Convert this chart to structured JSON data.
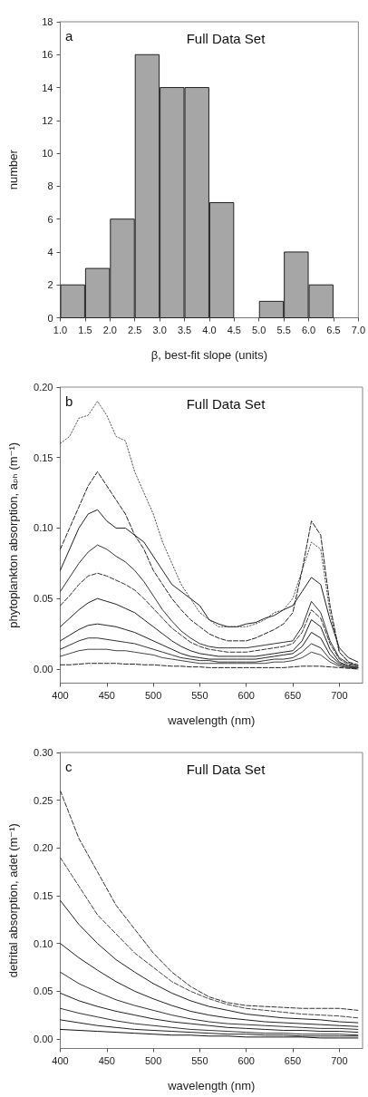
{
  "chart_data": [
    {
      "type": "histogram",
      "title": "Full Data Set",
      "annotations": [
        "a"
      ],
      "xlabel": "β, best-fit slope (units)",
      "ylabel": "number",
      "bins": [
        1.0,
        1.5,
        2.0,
        2.5,
        3.0,
        3.5,
        4.0,
        4.5,
        5.0,
        5.5,
        6.0,
        6.5
      ],
      "values": [
        2,
        3,
        6,
        16,
        14,
        14,
        7,
        0,
        1,
        4,
        2
      ],
      "color": "#a6a6a6",
      "xlim": [
        1.0,
        7.0
      ],
      "xticks": [
        {
          "value": 1,
          "label": "1.0"
        },
        1.5,
        {
          "value": 2,
          "label": "2.0"
        },
        2.5,
        {
          "value": 3,
          "label": "3.0"
        },
        3.5,
        {
          "value": 4,
          "label": "4.0"
        },
        4.5,
        {
          "value": 5,
          "label": "5.0"
        },
        5.5,
        {
          "value": 6,
          "label": "6.0"
        },
        6.5,
        {
          "value": 7,
          "label": "7.0"
        }
      ],
      "ylim": [
        0,
        18
      ],
      "yticks": [
        0,
        2,
        4,
        6,
        8,
        10,
        12,
        14,
        16,
        18
      ]
    },
    {
      "type": "line",
      "title": "Full Data Set",
      "annotations": [
        "b"
      ],
      "xlabel": "wavelength (nm)",
      "ylabel": "phytoplankton absorption, aₚₕ (m⁻¹)",
      "marker": "none",
      "x": [
        400,
        410,
        420,
        430,
        440,
        450,
        460,
        470,
        480,
        490,
        500,
        510,
        520,
        530,
        540,
        550,
        560,
        570,
        580,
        590,
        600,
        610,
        620,
        630,
        640,
        650,
        660,
        670,
        680,
        690,
        700,
        710,
        720
      ],
      "series": [
        {
          "color": "#555555",
          "line_style": "dotted",
          "values": [
            0.16,
            0.165,
            0.178,
            0.18,
            0.19,
            0.18,
            0.165,
            0.162,
            0.14,
            0.125,
            0.11,
            0.09,
            0.075,
            0.06,
            0.05,
            0.04,
            0.035,
            0.03,
            0.03,
            0.03,
            0.03,
            0.032,
            0.035,
            0.04,
            0.042,
            0.05,
            0.07,
            0.09,
            0.085,
            0.04,
            0.012,
            0.005,
            0.002
          ]
        },
        {
          "color": "#222222",
          "line_style": "dashed",
          "values": [
            0.085,
            0.1,
            0.115,
            0.13,
            0.14,
            0.13,
            0.12,
            0.11,
            0.095,
            0.085,
            0.07,
            0.06,
            0.05,
            0.042,
            0.035,
            0.03,
            0.025,
            0.022,
            0.02,
            0.02,
            0.02,
            0.022,
            0.025,
            0.028,
            0.032,
            0.04,
            0.07,
            0.105,
            0.095,
            0.045,
            0.012,
            0.005,
            0.003
          ]
        },
        {
          "color": "#222222",
          "line_style": "solid",
          "values": [
            0.07,
            0.085,
            0.1,
            0.11,
            0.113,
            0.105,
            0.1,
            0.1,
            0.095,
            0.09,
            0.08,
            0.07,
            0.06,
            0.055,
            0.05,
            0.045,
            0.035,
            0.032,
            0.03,
            0.03,
            0.032,
            0.033,
            0.036,
            0.038,
            0.042,
            0.045,
            0.055,
            0.065,
            0.06,
            0.035,
            0.015,
            0.008,
            0.005
          ]
        },
        {
          "color": "#333333",
          "line_style": "solid",
          "values": [
            0.055,
            0.065,
            0.075,
            0.083,
            0.088,
            0.085,
            0.08,
            0.076,
            0.07,
            0.062,
            0.052,
            0.042,
            0.034,
            0.027,
            0.022,
            0.018,
            0.016,
            0.015,
            0.015,
            0.015,
            0.015,
            0.016,
            0.017,
            0.018,
            0.019,
            0.02,
            0.03,
            0.048,
            0.04,
            0.02,
            0.008,
            0.004,
            0.002
          ]
        },
        {
          "color": "#333333",
          "line_style": "dashed",
          "values": [
            0.045,
            0.052,
            0.06,
            0.066,
            0.068,
            0.066,
            0.063,
            0.06,
            0.056,
            0.05,
            0.043,
            0.036,
            0.029,
            0.024,
            0.019,
            0.016,
            0.014,
            0.013,
            0.012,
            0.012,
            0.012,
            0.013,
            0.014,
            0.015,
            0.016,
            0.018,
            0.026,
            0.042,
            0.036,
            0.018,
            0.007,
            0.003,
            0.002
          ]
        },
        {
          "color": "#222222",
          "line_style": "solid",
          "values": [
            0.03,
            0.036,
            0.042,
            0.047,
            0.05,
            0.048,
            0.046,
            0.043,
            0.04,
            0.035,
            0.03,
            0.025,
            0.02,
            0.016,
            0.013,
            0.011,
            0.01,
            0.009,
            0.009,
            0.009,
            0.009,
            0.009,
            0.01,
            0.011,
            0.012,
            0.013,
            0.02,
            0.035,
            0.03,
            0.014,
            0.005,
            0.002,
            0.001
          ]
        },
        {
          "color": "#222222",
          "line_style": "solid",
          "values": [
            0.02,
            0.024,
            0.028,
            0.031,
            0.032,
            0.031,
            0.03,
            0.028,
            0.026,
            0.023,
            0.02,
            0.017,
            0.014,
            0.011,
            0.009,
            0.008,
            0.007,
            0.007,
            0.007,
            0.007,
            0.007,
            0.007,
            0.008,
            0.009,
            0.01,
            0.011,
            0.016,
            0.026,
            0.022,
            0.01,
            0.004,
            0.002,
            0.001
          ]
        },
        {
          "color": "#333333",
          "line_style": "solid",
          "values": [
            0.014,
            0.017,
            0.02,
            0.022,
            0.022,
            0.021,
            0.02,
            0.019,
            0.018,
            0.016,
            0.014,
            0.012,
            0.01,
            0.008,
            0.007,
            0.006,
            0.006,
            0.005,
            0.005,
            0.005,
            0.005,
            0.005,
            0.006,
            0.007,
            0.007,
            0.008,
            0.012,
            0.018,
            0.015,
            0.007,
            0.003,
            0.001,
            0.001
          ]
        },
        {
          "color": "#444444",
          "line_style": "solid",
          "values": [
            0.009,
            0.011,
            0.013,
            0.014,
            0.014,
            0.014,
            0.013,
            0.013,
            0.012,
            0.011,
            0.01,
            0.008,
            0.007,
            0.006,
            0.005,
            0.004,
            0.004,
            0.004,
            0.004,
            0.004,
            0.004,
            0.004,
            0.004,
            0.005,
            0.005,
            0.006,
            0.008,
            0.012,
            0.01,
            0.005,
            0.002,
            0.001,
            0.0
          ]
        },
        {
          "color": "#222222",
          "line_style": "dashed",
          "values": [
            0.003,
            0.003,
            0.0035,
            0.004,
            0.004,
            0.004,
            0.004,
            0.0035,
            0.0035,
            0.003,
            0.003,
            0.0025,
            0.002,
            0.002,
            0.0015,
            0.0015,
            0.001,
            0.001,
            0.001,
            0.001,
            0.001,
            0.001,
            0.001,
            0.001,
            0.001,
            0.0015,
            0.002,
            0.002,
            0.002,
            0.0015,
            0.001,
            0.0005,
            0.0
          ]
        }
      ],
      "xlim": [
        400,
        725
      ],
      "xticks": [
        400,
        450,
        500,
        550,
        600,
        650,
        700
      ],
      "ylim": [
        -0.01,
        0.2
      ],
      "yticks": [
        {
          "value": 0,
          "label": "0.00"
        },
        0.05,
        {
          "value": 0.1,
          "label": "0.10"
        },
        0.15,
        {
          "value": 0.2,
          "label": "0.20"
        }
      ]
    },
    {
      "type": "line",
      "title": "Full Data Set",
      "annotations": [
        "c"
      ],
      "xlabel": "wavelength (nm)",
      "ylabel": "detrital absorption, adet (m⁻¹)",
      "marker": "none",
      "x": [
        400,
        420,
        440,
        460,
        480,
        500,
        520,
        540,
        560,
        580,
        600,
        620,
        640,
        660,
        680,
        700,
        720
      ],
      "series": [
        {
          "color": "#333333",
          "line_style": "dashed",
          "values": [
            0.26,
            0.21,
            0.175,
            0.14,
            0.115,
            0.09,
            0.07,
            0.055,
            0.044,
            0.038,
            0.035,
            0.034,
            0.033,
            0.032,
            0.032,
            0.032,
            0.03
          ]
        },
        {
          "color": "#444444",
          "line_style": "dashed",
          "values": [
            0.19,
            0.16,
            0.13,
            0.11,
            0.09,
            0.075,
            0.06,
            0.05,
            0.042,
            0.036,
            0.032,
            0.03,
            0.028,
            0.026,
            0.025,
            0.024,
            0.022
          ]
        },
        {
          "color": "#222222",
          "line_style": "solid",
          "values": [
            0.145,
            0.12,
            0.1,
            0.083,
            0.07,
            0.058,
            0.048,
            0.04,
            0.034,
            0.03,
            0.026,
            0.024,
            0.022,
            0.021,
            0.02,
            0.018,
            0.017
          ]
        },
        {
          "color": "#222222",
          "line_style": "solid",
          "values": [
            0.1,
            0.085,
            0.072,
            0.06,
            0.05,
            0.042,
            0.035,
            0.029,
            0.025,
            0.022,
            0.02,
            0.018,
            0.017,
            0.016,
            0.015,
            0.014,
            0.013
          ]
        },
        {
          "color": "#333333",
          "line_style": "solid",
          "values": [
            0.07,
            0.058,
            0.049,
            0.041,
            0.035,
            0.03,
            0.025,
            0.021,
            0.018,
            0.016,
            0.015,
            0.014,
            0.013,
            0.012,
            0.011,
            0.011,
            0.01
          ]
        },
        {
          "color": "#222222",
          "line_style": "solid",
          "values": [
            0.048,
            0.04,
            0.034,
            0.029,
            0.025,
            0.021,
            0.018,
            0.016,
            0.014,
            0.012,
            0.011,
            0.01,
            0.009,
            0.009,
            0.008,
            0.008,
            0.007
          ]
        },
        {
          "color": "#333333",
          "line_style": "solid",
          "values": [
            0.032,
            0.027,
            0.023,
            0.019,
            0.016,
            0.014,
            0.012,
            0.01,
            0.009,
            0.008,
            0.007,
            0.006,
            0.006,
            0.005,
            0.005,
            0.005,
            0.004
          ]
        },
        {
          "color": "#222222",
          "line_style": "solid",
          "values": [
            0.02,
            0.017,
            0.014,
            0.012,
            0.01,
            0.009,
            0.008,
            0.007,
            0.006,
            0.005,
            0.005,
            0.004,
            0.004,
            0.003,
            0.003,
            0.003,
            0.003
          ]
        },
        {
          "color": "#111111",
          "line_style": "solid",
          "values": [
            0.01,
            0.009,
            0.008,
            0.007,
            0.006,
            0.005,
            0.004,
            0.004,
            0.003,
            0.003,
            0.002,
            0.002,
            0.002,
            0.002,
            0.001,
            0.001,
            0.001
          ]
        }
      ],
      "xlim": [
        400,
        725
      ],
      "xticks": [
        400,
        450,
        500,
        550,
        600,
        650,
        700
      ],
      "ylim": [
        -0.01,
        0.3
      ],
      "yticks": [
        {
          "value": 0,
          "label": "0.00"
        },
        0.05,
        {
          "value": 0.1,
          "label": "0.10"
        },
        0.15,
        {
          "value": 0.2,
          "label": "0.20"
        },
        0.25,
        {
          "value": 0.3,
          "label": "0.30"
        }
      ]
    }
  ]
}
